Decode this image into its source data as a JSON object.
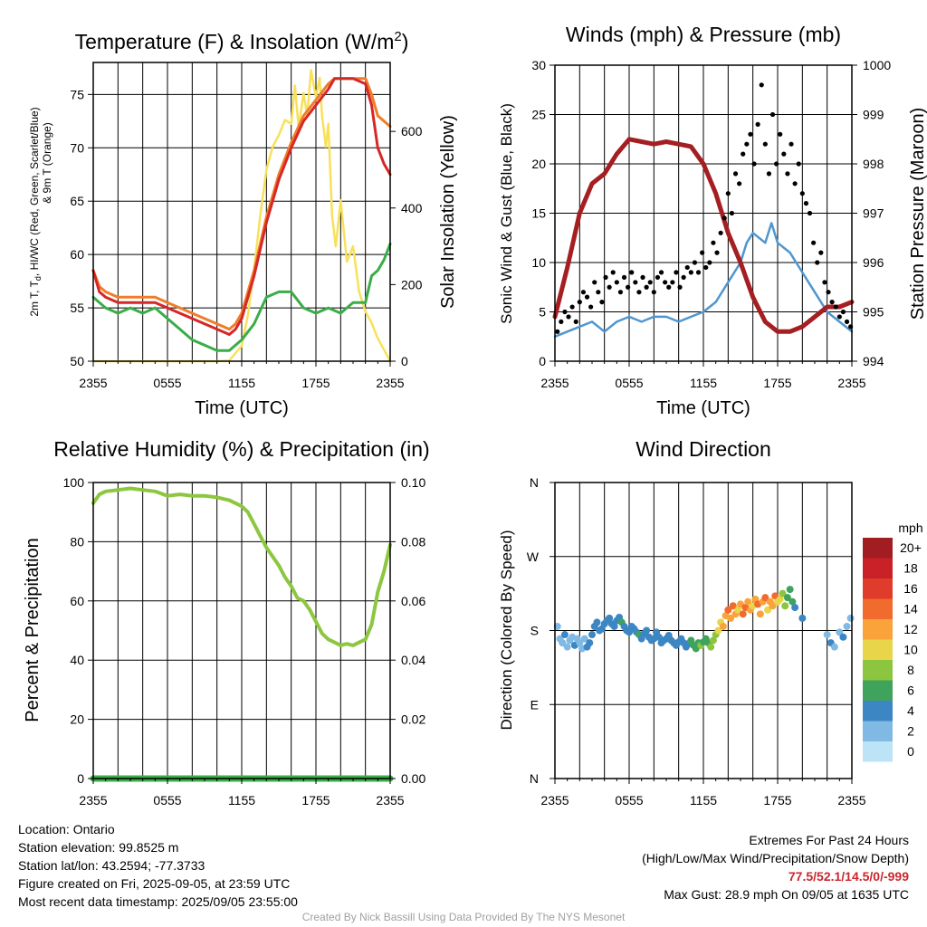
{
  "charts_meta": {
    "xticks": [
      "2355",
      "0555",
      "1155",
      "1755",
      "2355"
    ],
    "xlabel": "Time (UTC)"
  },
  "chart_data": [
    {
      "id": "temperature",
      "type": "line",
      "title": "Temperature (F) & Insolation (W/m",
      "title_sup": "2",
      "title_end": ")",
      "xlabel": "Time (UTC)",
      "ylabel_lines": [
        "2m T, T",
        "d",
        ", HI/WC (Red, Green, Scarlet/Blue)",
        "& 9m T (Orange)"
      ],
      "ylabel_right": "Solar Insolation (Yellow)",
      "xlim": [
        0,
        24
      ],
      "ylim": [
        50,
        78
      ],
      "ylim_right": [
        0,
        780
      ],
      "yticks": [
        50,
        55,
        60,
        65,
        70,
        75
      ],
      "yticks_right": [
        0,
        200,
        400,
        600
      ],
      "series": [
        {
          "name": "2m T",
          "color": "#d62728",
          "width": 3,
          "x": [
            0,
            0.5,
            1,
            2,
            3,
            4,
            5,
            6,
            7,
            8,
            9,
            10,
            11,
            11.5,
            12,
            13,
            14,
            15,
            16,
            17,
            18,
            19,
            19.5,
            20,
            21,
            22,
            22.5,
            23,
            23.5,
            24
          ],
          "y": [
            58.5,
            56.5,
            56,
            55.5,
            55.5,
            55.5,
            55.5,
            55,
            54.5,
            54,
            53.5,
            53,
            52.5,
            53,
            54,
            58,
            63,
            67,
            70,
            72.5,
            74,
            75.5,
            76.5,
            76.5,
            76.5,
            76,
            74,
            70,
            68.5,
            67.5
          ]
        },
        {
          "name": "9m T",
          "color": "#ef7d29",
          "width": 3,
          "x": [
            0,
            0.5,
            1,
            2,
            3,
            4,
            5,
            6,
            7,
            8,
            9,
            10,
            11,
            11.5,
            12,
            13,
            14,
            15,
            16,
            17,
            18,
            19,
            19.5,
            20,
            21,
            22,
            22.5,
            23,
            23.5,
            24
          ],
          "y": [
            58.5,
            57,
            56.5,
            56,
            56,
            56,
            56,
            55.5,
            55,
            54.5,
            54,
            53.5,
            53,
            53.5,
            54.5,
            58.5,
            63.5,
            67.5,
            70.5,
            73,
            74.5,
            76,
            76.5,
            76.5,
            76.5,
            76.5,
            75,
            73,
            72.5,
            72
          ]
        },
        {
          "name": "Td",
          "color": "#3aad48",
          "width": 3,
          "x": [
            0,
            0.5,
            1,
            2,
            3,
            4,
            5,
            6,
            7,
            8,
            9,
            10,
            11,
            12,
            13,
            14,
            15,
            16,
            17,
            18,
            19,
            20,
            21,
            22,
            22.5,
            23,
            23.5,
            24
          ],
          "y": [
            56,
            55.5,
            55,
            54.5,
            55,
            54.5,
            55,
            54,
            53,
            52,
            51.5,
            51,
            51,
            52,
            53.5,
            56,
            56.5,
            56.5,
            55,
            54.5,
            55,
            54.5,
            55.5,
            55.5,
            58,
            58.5,
            59.5,
            61
          ]
        },
        {
          "name": "Insolation",
          "color": "#f8e15a",
          "width": 2.5,
          "axis": "right",
          "x": [
            0,
            2,
            4,
            6,
            8,
            10,
            11,
            12,
            12.5,
            13,
            13.5,
            14,
            14.5,
            15,
            15.5,
            16,
            16.3,
            16.6,
            17,
            17.3,
            17.6,
            18,
            18.3,
            18.5,
            18.8,
            19,
            19.3,
            19.6,
            20,
            20.5,
            21,
            21.5,
            22,
            22.5,
            23,
            23.5,
            24
          ],
          "y": [
            0,
            0,
            0,
            0,
            0,
            0,
            2,
            40,
            120,
            240,
            380,
            500,
            560,
            590,
            630,
            620,
            720,
            610,
            700,
            640,
            760,
            690,
            740,
            640,
            560,
            620,
            380,
            300,
            420,
            260,
            300,
            180,
            130,
            100,
            60,
            30,
            0
          ]
        }
      ]
    },
    {
      "id": "winds",
      "type": "line",
      "title": "Winds (mph) & Pressure (mb)",
      "xlabel": "Time (UTC)",
      "ylabel": "Sonic Wind & Gust (Blue, Black)",
      "ylabel_right": "Station Pressure (Maroon)",
      "xlim": [
        0,
        24
      ],
      "ylim": [
        0,
        30
      ],
      "ylim_right": [
        994,
        1000
      ],
      "yticks": [
        0,
        5,
        10,
        15,
        20,
        25,
        30
      ],
      "yticks_right": [
        994,
        995,
        996,
        997,
        998,
        999,
        1000
      ],
      "series": [
        {
          "name": "Sonic Wind",
          "color": "#4f96d0",
          "width": 2.5,
          "x": [
            0,
            1,
            2,
            3,
            4,
            5,
            6,
            7,
            8,
            9,
            10,
            11,
            12,
            13,
            14,
            15,
            15.5,
            16,
            17,
            17.5,
            18,
            19,
            20,
            21,
            22,
            23,
            24
          ],
          "y": [
            2.5,
            3,
            3.5,
            4,
            3,
            4,
            4.5,
            4,
            4.5,
            4.5,
            4,
            4.5,
            5,
            6,
            8,
            10,
            12,
            13,
            12,
            14,
            12,
            11,
            9,
            7,
            5,
            4,
            3
          ]
        },
        {
          "name": "Pressure",
          "color": "#a51e22",
          "width": 5,
          "axis": "right",
          "x": [
            0,
            1,
            2,
            3,
            4,
            5,
            6,
            7,
            8,
            9,
            10,
            11,
            12,
            13,
            14,
            15,
            16,
            17,
            18,
            19,
            20,
            21,
            22,
            23,
            24
          ],
          "y": [
            994.9,
            995.9,
            997.0,
            997.6,
            997.8,
            998.2,
            998.5,
            998.45,
            998.4,
            998.45,
            998.4,
            998.35,
            998.0,
            997.4,
            996.6,
            996.0,
            995.3,
            994.8,
            994.6,
            994.6,
            994.7,
            994.9,
            995.1,
            995.1,
            995.2
          ]
        }
      ],
      "gust_points": {
        "name": "Gust",
        "color": "#000000",
        "x": [
          0.2,
          0.5,
          0.8,
          1.1,
          1.4,
          1.7,
          2.0,
          2.3,
          2.6,
          2.9,
          3.2,
          3.5,
          3.8,
          4.1,
          4.4,
          4.7,
          5.0,
          5.3,
          5.6,
          5.9,
          6.2,
          6.5,
          6.8,
          7.1,
          7.4,
          7.7,
          8.0,
          8.3,
          8.6,
          8.9,
          9.2,
          9.5,
          9.8,
          10.1,
          10.4,
          10.7,
          11.0,
          11.3,
          11.6,
          11.9,
          12.2,
          12.5,
          12.8,
          13.1,
          13.4,
          13.7,
          14.0,
          14.3,
          14.6,
          14.9,
          15.2,
          15.5,
          15.8,
          16.1,
          16.4,
          16.7,
          17.0,
          17.3,
          17.6,
          17.9,
          18.2,
          18.5,
          18.8,
          19.1,
          19.4,
          19.7,
          20.0,
          20.3,
          20.6,
          20.9,
          21.2,
          21.5,
          21.8,
          22.1,
          22.4,
          22.7,
          23.0,
          23.3,
          23.6,
          23.9
        ],
        "y": [
          3,
          4,
          5,
          4.5,
          5.5,
          4,
          6,
          7,
          6.5,
          5.5,
          8,
          7,
          6,
          8.5,
          7.5,
          9,
          8,
          7,
          8.5,
          7.5,
          9,
          8,
          7,
          8.5,
          7.5,
          8,
          7,
          8.5,
          9,
          8,
          7.5,
          8,
          9,
          7.5,
          8.5,
          9.5,
          9,
          10,
          9,
          11,
          9.5,
          10,
          12,
          11,
          13,
          14.5,
          17,
          15,
          19,
          18,
          21,
          22,
          23,
          20,
          24,
          28,
          22,
          19,
          25,
          20,
          23,
          21,
          19,
          22,
          18,
          20,
          17,
          16,
          15,
          12,
          10,
          11,
          8,
          7,
          6,
          5.5,
          4.5,
          5,
          4,
          3.5
        ]
      }
    },
    {
      "id": "humidity",
      "type": "line",
      "title": "Relative Humidity (%) & Precipitation (in)",
      "ylabel": "Percent & Precipitation",
      "xlim": [
        0,
        24
      ],
      "ylim": [
        0,
        100
      ],
      "ylim_right": [
        0,
        0.1
      ],
      "yticks": [
        0,
        20,
        40,
        60,
        80,
        100
      ],
      "yticks_right": [
        "0.00",
        "0.02",
        "0.04",
        "0.06",
        "0.08",
        "0.10"
      ],
      "series": [
        {
          "name": "Relative Humidity",
          "color": "#8dc63f",
          "width": 4,
          "x": [
            0,
            0.5,
            1,
            2,
            3,
            4,
            5,
            6,
            7,
            8,
            9,
            10,
            11,
            12,
            12.5,
            13,
            13.5,
            14,
            15,
            15.5,
            16,
            16.5,
            17,
            17.5,
            18,
            18.5,
            19,
            19.5,
            20,
            20.5,
            21,
            21.5,
            22,
            22.5,
            23,
            23.5,
            24
          ],
          "y": [
            93,
            96,
            97,
            97.5,
            98,
            97.5,
            97,
            95.5,
            96,
            95.5,
            95.5,
            95,
            94,
            92,
            90,
            86,
            82,
            78,
            72,
            68,
            65,
            61,
            60,
            57,
            53,
            49,
            47,
            46,
            45,
            45.5,
            45,
            46,
            47,
            52,
            63,
            70,
            79
          ]
        },
        {
          "name": "Precipitation",
          "color": "#3aad48",
          "width": 7,
          "x": [
            0,
            24
          ],
          "y": [
            0,
            0
          ]
        }
      ]
    },
    {
      "id": "wind_direction",
      "type": "scatter",
      "title": "Wind Direction",
      "ylabel": "Direction (Colored By Speed)",
      "xlim": [
        0,
        24
      ],
      "ylim": [
        0,
        360
      ],
      "yticks_labels": [
        "N",
        "E",
        "S",
        "W",
        "N"
      ],
      "yticks_values": [
        0,
        90,
        180,
        270,
        360
      ],
      "colorbar": {
        "unit": "mph",
        "labels": [
          "20+",
          "18",
          "16",
          "14",
          "12",
          "10",
          "8",
          "6",
          "4",
          "2",
          "0"
        ],
        "colors": [
          "#a21d22",
          "#c92127",
          "#e03c2c",
          "#f16a2e",
          "#f9a33a",
          "#e8d54a",
          "#8cc540",
          "#3fa35c",
          "#3d86c4",
          "#7fb9e4",
          "#bde3f7"
        ]
      },
      "points": {
        "x": [
          0.2,
          0.4,
          0.6,
          0.8,
          1.0,
          1.2,
          1.4,
          1.6,
          1.8,
          2.0,
          2.2,
          2.4,
          2.6,
          2.8,
          3.0,
          3.2,
          3.4,
          3.6,
          3.8,
          4.0,
          4.2,
          4.4,
          4.6,
          4.8,
          5.0,
          5.2,
          5.4,
          5.6,
          5.8,
          6.0,
          6.2,
          6.4,
          6.6,
          6.8,
          7.0,
          7.2,
          7.4,
          7.6,
          7.8,
          8.0,
          8.2,
          8.4,
          8.6,
          8.8,
          9.0,
          9.2,
          9.4,
          9.6,
          9.8,
          10.0,
          10.2,
          10.4,
          10.6,
          10.8,
          11.0,
          11.2,
          11.4,
          11.6,
          11.8,
          12.0,
          12.2,
          12.4,
          12.6,
          12.8,
          13.0,
          13.2,
          13.4,
          13.6,
          13.8,
          14.0,
          14.2,
          14.4,
          14.6,
          14.8,
          15.0,
          15.2,
          15.4,
          15.6,
          15.8,
          16.0,
          16.2,
          16.4,
          16.6,
          16.8,
          17.0,
          17.2,
          17.4,
          17.6,
          17.8,
          18.0,
          18.2,
          18.4,
          18.6,
          18.8,
          19.0,
          19.2,
          19.4,
          20.0,
          22.0,
          22.3,
          22.6,
          23.0,
          23.3,
          23.6,
          23.9
        ],
        "y": [
          185,
          170,
          165,
          175,
          160,
          168,
          172,
          162,
          170,
          165,
          158,
          170,
          160,
          165,
          175,
          185,
          190,
          180,
          182,
          188,
          192,
          195,
          188,
          185,
          192,
          196,
          190,
          185,
          180,
          178,
          185,
          182,
          178,
          175,
          170,
          176,
          180,
          172,
          168,
          170,
          178,
          172,
          165,
          168,
          170,
          174,
          168,
          165,
          162,
          166,
          170,
          165,
          160,
          164,
          168,
          162,
          158,
          165,
          162,
          166,
          170,
          165,
          160,
          168,
          175,
          180,
          190,
          185,
          198,
          205,
          195,
          210,
          200,
          205,
          212,
          200,
          208,
          215,
          205,
          210,
          218,
          212,
          200,
          215,
          220,
          205,
          215,
          210,
          222,
          215,
          218,
          225,
          210,
          220,
          230,
          215,
          208,
          195,
          175,
          165,
          160,
          178,
          172,
          185,
          195
        ],
        "speed": [
          2,
          2,
          2,
          3,
          2,
          2,
          2,
          3,
          2,
          2,
          2,
          2,
          3,
          3,
          4,
          3,
          3,
          4,
          4,
          4,
          4,
          4,
          4,
          4,
          4,
          4,
          5,
          4,
          4,
          4,
          4,
          4,
          4,
          5,
          4,
          4,
          4,
          4,
          4,
          4,
          4,
          4,
          4,
          4,
          4,
          4,
          4,
          4,
          4,
          4,
          4,
          4,
          4,
          4,
          5,
          5,
          5,
          6,
          7,
          6,
          5,
          6,
          7,
          8,
          8,
          9,
          10,
          11,
          12,
          14,
          12,
          13,
          11,
          10,
          12,
          14,
          13,
          12,
          11,
          10,
          12,
          13,
          11,
          12,
          14,
          10,
          12,
          11,
          13,
          10,
          9,
          8,
          7,
          6,
          6,
          5,
          4,
          3,
          2,
          3,
          2,
          2,
          3,
          2,
          2
        ]
      }
    }
  ],
  "info": {
    "location": "Location: Ontario",
    "elevation": "Station elevation: 99.8525 m",
    "latlon": "Station lat/lon: 43.2594; -77.3733",
    "created": "Figure created on Fri, 2025-09-05, at 23:59 UTC",
    "recent": "Most recent data timestamp: 2025/09/05 23:55:00"
  },
  "extremes": {
    "title": "Extremes For Past 24 Hours",
    "subtitle": "(High/Low/Max Wind/Precipitation/Snow Depth)",
    "values": "77.5/52.1/14.5/0/-999",
    "gust": "Max Gust: 28.9 mph On 09/05 at 1635 UTC"
  },
  "credit": "Created By Nick Bassill Using Data Provided By The NYS Mesonet"
}
